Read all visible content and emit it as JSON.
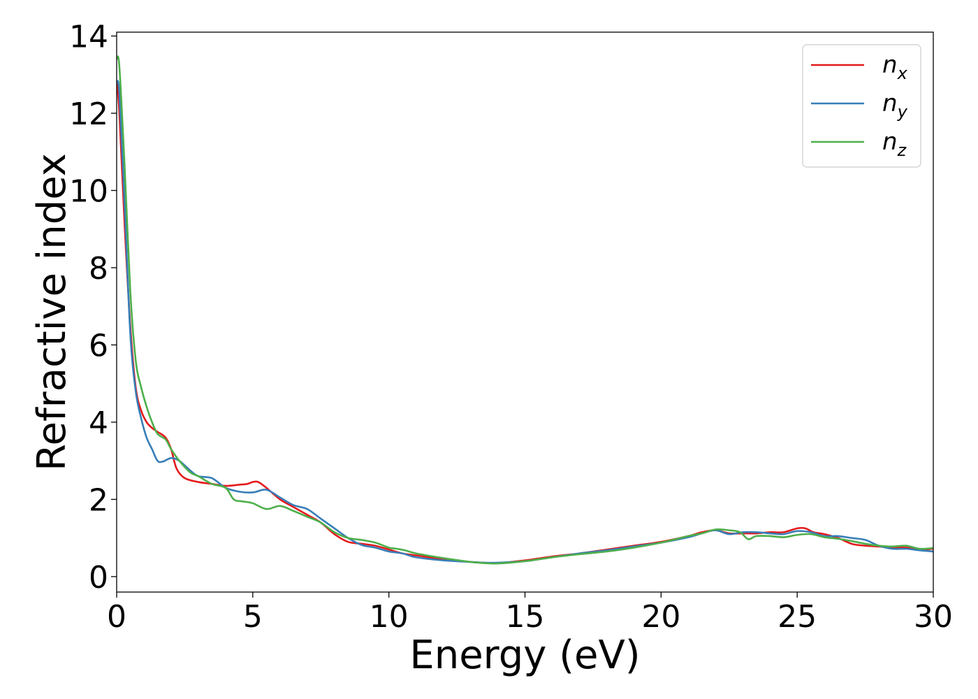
{
  "chart_data": {
    "type": "line",
    "xlabel": "Energy (eV)",
    "ylabel": "Refractive index",
    "xlim": [
      0,
      30
    ],
    "ylim": [
      -0.4,
      14.1
    ],
    "xticks": [
      0,
      5,
      10,
      15,
      20,
      25,
      30
    ],
    "yticks": [
      0,
      2,
      4,
      6,
      8,
      10,
      12,
      14
    ],
    "grid": false,
    "legend_position": "top-right",
    "series": [
      {
        "name": "n",
        "subscript": "x",
        "color": "#e41a1c",
        "x": [
          0,
          0.1,
          0.3,
          0.5,
          0.7,
          0.9,
          1.1,
          1.3,
          1.5,
          1.8,
          2.0,
          2.2,
          2.5,
          3.0,
          3.5,
          4.0,
          4.5,
          4.8,
          5.0,
          5.2,
          5.5,
          6.0,
          6.5,
          7.0,
          7.5,
          8.0,
          8.5,
          9.0,
          9.5,
          10.0,
          10.5,
          11.0,
          12.0,
          13.0,
          13.5,
          14.0,
          15.0,
          16.0,
          17.0,
          18.0,
          19.0,
          20.0,
          21.0,
          21.5,
          22.0,
          22.5,
          23.0,
          23.5,
          24.0,
          24.5,
          25.0,
          25.3,
          25.6,
          26.0,
          26.5,
          27.0,
          27.5,
          28.0,
          28.5,
          29.0,
          29.5,
          30.0
        ],
        "y": [
          12.8,
          12.0,
          9.0,
          6.5,
          4.9,
          4.3,
          4.0,
          3.85,
          3.75,
          3.6,
          3.3,
          2.8,
          2.55,
          2.45,
          2.4,
          2.35,
          2.38,
          2.4,
          2.45,
          2.45,
          2.3,
          2.0,
          1.8,
          1.6,
          1.4,
          1.1,
          0.9,
          0.85,
          0.8,
          0.7,
          0.6,
          0.55,
          0.45,
          0.38,
          0.36,
          0.35,
          0.42,
          0.52,
          0.6,
          0.7,
          0.8,
          0.9,
          1.05,
          1.15,
          1.2,
          1.12,
          1.12,
          1.12,
          1.15,
          1.15,
          1.25,
          1.25,
          1.15,
          1.1,
          1.0,
          0.85,
          0.8,
          0.78,
          0.75,
          0.75,
          0.7,
          0.72
        ]
      },
      {
        "name": "n",
        "subscript": "y",
        "color": "#377eb8",
        "x": [
          0,
          0.1,
          0.3,
          0.5,
          0.7,
          0.9,
          1.1,
          1.3,
          1.5,
          1.7,
          2.0,
          2.3,
          2.7,
          3.0,
          3.5,
          4.0,
          4.5,
          5.0,
          5.5,
          6.0,
          6.5,
          7.0,
          7.5,
          8.0,
          8.5,
          9.0,
          9.5,
          10.0,
          10.5,
          11.0,
          12.0,
          13.0,
          13.5,
          14.0,
          15.0,
          16.0,
          17.0,
          18.0,
          19.0,
          20.0,
          21.0,
          21.5,
          22.0,
          22.5,
          23.0,
          23.5,
          24.0,
          24.5,
          25.0,
          25.5,
          26.0,
          26.5,
          27.0,
          27.5,
          28.0,
          28.5,
          29.0,
          29.5,
          30.0
        ],
        "y": [
          12.8,
          12.5,
          9.5,
          6.3,
          4.8,
          4.1,
          3.6,
          3.3,
          3.0,
          2.98,
          3.07,
          3.0,
          2.75,
          2.6,
          2.55,
          2.3,
          2.2,
          2.18,
          2.25,
          2.05,
          1.85,
          1.75,
          1.5,
          1.25,
          1.0,
          0.82,
          0.75,
          0.65,
          0.6,
          0.5,
          0.42,
          0.38,
          0.36,
          0.36,
          0.4,
          0.5,
          0.6,
          0.68,
          0.78,
          0.88,
          1.02,
          1.12,
          1.2,
          1.1,
          1.15,
          1.15,
          1.12,
          1.1,
          1.18,
          1.15,
          1.05,
          1.05,
          1.0,
          0.95,
          0.8,
          0.72,
          0.72,
          0.68,
          0.65
        ]
      },
      {
        "name": "n",
        "subscript": "z",
        "color": "#4daf4a",
        "x": [
          0,
          0.1,
          0.3,
          0.5,
          0.7,
          0.9,
          1.1,
          1.3,
          1.5,
          1.8,
          2.0,
          2.3,
          2.7,
          3.0,
          3.5,
          4.0,
          4.3,
          4.6,
          5.0,
          5.5,
          6.0,
          6.5,
          7.0,
          7.5,
          8.0,
          8.5,
          9.0,
          9.5,
          10.0,
          10.3,
          10.6,
          11.0,
          12.0,
          13.0,
          13.5,
          14.0,
          15.0,
          16.0,
          17.0,
          18.0,
          19.0,
          20.0,
          21.0,
          21.5,
          22.0,
          22.5,
          22.9,
          23.2,
          23.5,
          24.0,
          24.5,
          25.0,
          25.5,
          26.0,
          26.5,
          27.0,
          27.5,
          28.0,
          28.5,
          29.0,
          29.5,
          30.0
        ],
        "y": [
          13.4,
          13.2,
          10.5,
          7.4,
          5.6,
          4.9,
          4.4,
          4.0,
          3.7,
          3.55,
          3.3,
          3.0,
          2.7,
          2.6,
          2.4,
          2.3,
          2.0,
          1.95,
          1.9,
          1.75,
          1.83,
          1.7,
          1.55,
          1.4,
          1.15,
          1.0,
          0.95,
          0.88,
          0.75,
          0.72,
          0.68,
          0.6,
          0.48,
          0.38,
          0.35,
          0.34,
          0.4,
          0.5,
          0.58,
          0.65,
          0.75,
          0.88,
          1.05,
          1.12,
          1.22,
          1.2,
          1.15,
          0.97,
          1.05,
          1.05,
          1.02,
          1.08,
          1.1,
          1.02,
          0.98,
          0.92,
          0.85,
          0.8,
          0.78,
          0.8,
          0.72,
          0.74
        ]
      }
    ]
  }
}
